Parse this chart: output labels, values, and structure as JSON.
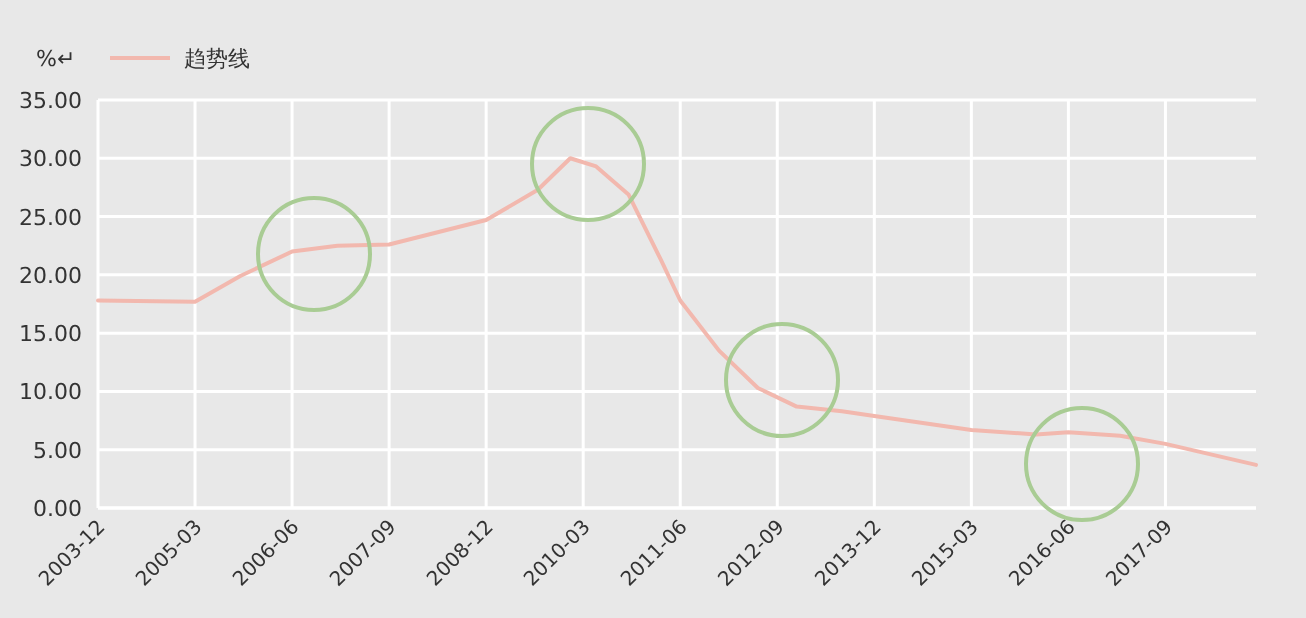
{
  "chart_data": {
    "type": "line",
    "ylabel": "%↵",
    "legend": "top left",
    "grid": true,
    "marker": "none",
    "line_style": "solid",
    "x": [
      "2003-12",
      "2005-03",
      "2005-10",
      "2006-06",
      "2007-01",
      "2007-09",
      "2008-12",
      "2009-08",
      "2010-01",
      "2010-05",
      "2010-10",
      "2011-03",
      "2011-06",
      "2011-12",
      "2012-06",
      "2012-12",
      "2013-07",
      "2013-12",
      "2015-03",
      "2016-01",
      "2016-06",
      "2017-02",
      "2017-09",
      "2018-11"
    ],
    "series": [
      {
        "name": "趋势线",
        "color": "#f2b8ae",
        "values": [
          17.8,
          17.7,
          19.9,
          22.0,
          22.5,
          22.6,
          24.7,
          27.3,
          30.0,
          29.3,
          26.9,
          21.3,
          17.8,
          13.5,
          10.3,
          8.7,
          8.3,
          7.9,
          6.7,
          6.3,
          6.5,
          6.2,
          5.5,
          3.7
        ]
      }
    ],
    "xlim": [
      "2003-12",
      "2018-11"
    ],
    "xticks": [
      {
        "value": "2003-12",
        "label": "2003-12"
      },
      {
        "value": "2005-03",
        "label": "2005-03"
      },
      {
        "value": "2006-06",
        "label": "2006-06"
      },
      {
        "value": "2007-09",
        "label": "2007-09"
      },
      {
        "value": "2008-12",
        "label": "2008-12"
      },
      {
        "value": "2010-03",
        "label": "2010-03"
      },
      {
        "value": "2011-06",
        "label": "2011-06"
      },
      {
        "value": "2012-09",
        "label": "2012-09"
      },
      {
        "value": "2013-12",
        "label": "2013-12"
      },
      {
        "value": "2015-03",
        "label": "2015-03"
      },
      {
        "value": "2016-06",
        "label": "2016-06"
      },
      {
        "value": "2017-09",
        "label": "2017-09"
      }
    ],
    "ylim": [
      0,
      35
    ],
    "yticks": [
      {
        "value": 0,
        "label": "0.00"
      },
      {
        "value": 5,
        "label": "5.00"
      },
      {
        "value": 10,
        "label": "10.00"
      },
      {
        "value": 15,
        "label": "15.00"
      },
      {
        "value": 20,
        "label": "20.00"
      },
      {
        "value": 25,
        "label": "25.00"
      },
      {
        "value": 30,
        "label": "30.00"
      },
      {
        "value": 35,
        "label": "35.00"
      }
    ]
  }
}
